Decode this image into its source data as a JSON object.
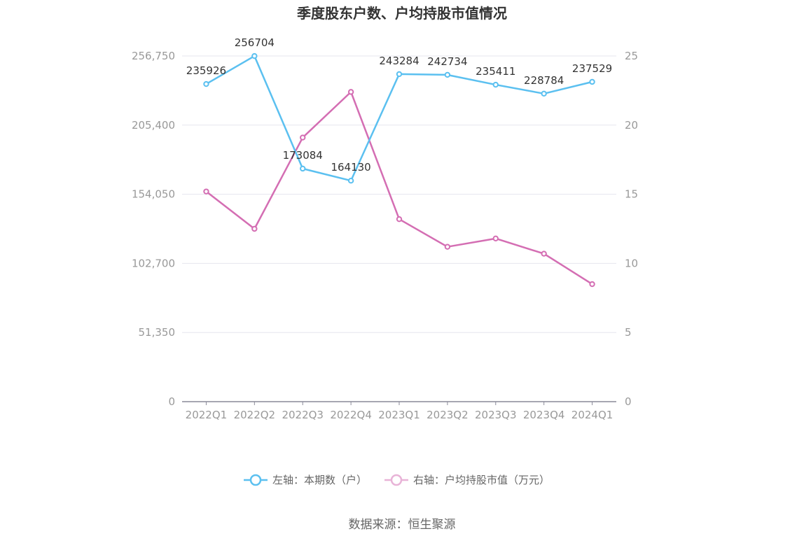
{
  "chart_data": {
    "type": "line",
    "title": "季度股东户数、户均持股市值情况",
    "categories": [
      "2022Q1",
      "2022Q2",
      "2022Q3",
      "2022Q4",
      "2023Q1",
      "2023Q2",
      "2023Q3",
      "2023Q4",
      "2024Q1"
    ],
    "left_axis": {
      "min": 0,
      "max": 256750,
      "ticks": [
        0,
        51350,
        102700,
        154050,
        205400,
        256750
      ],
      "tick_labels": [
        "0",
        "51,350",
        "102,700",
        "154,050",
        "205,400",
        "256,750"
      ]
    },
    "right_axis": {
      "min": 0,
      "max": 25,
      "ticks": [
        0,
        5,
        10,
        15,
        20,
        25
      ],
      "tick_labels": [
        "0",
        "5",
        "10",
        "15",
        "20",
        "25"
      ]
    },
    "series": [
      {
        "name": "左轴：本期数（户）",
        "axis": "left",
        "color": "#5bc0f0",
        "values": [
          235926,
          256704,
          173084,
          164130,
          243284,
          242734,
          235411,
          228784,
          237529
        ],
        "labels": [
          "235926",
          "256704",
          "173084",
          "164130",
          "243284",
          "242734",
          "235411",
          "228784",
          "237529"
        ]
      },
      {
        "name": "右轴：户均持股市值（万元）",
        "axis": "right",
        "color": "#d46eb3",
        "values": [
          15.2,
          12.5,
          19.1,
          22.4,
          13.2,
          11.2,
          11.8,
          10.7,
          8.5
        ]
      }
    ],
    "grid": true,
    "legend_position": "bottom-center"
  },
  "source_text": "数据来源：恒生聚源"
}
